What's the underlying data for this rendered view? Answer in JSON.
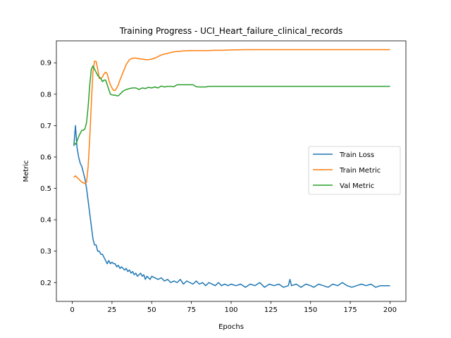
{
  "chart_data": {
    "type": "line",
    "title": "Training Progress - UCI_Heart_failure_clinical_records",
    "xlabel": "Epochs",
    "ylabel": "Metric",
    "xlim": [
      -10,
      210
    ],
    "ylim": [
      0.14,
      0.97
    ],
    "xticks": [
      0,
      25,
      50,
      75,
      100,
      125,
      150,
      175,
      200
    ],
    "yticks": [
      0.2,
      0.3,
      0.4,
      0.5,
      0.6,
      0.7,
      0.8,
      0.9
    ],
    "grid": false,
    "legend_position": "center-right",
    "series": [
      {
        "name": "Train Loss",
        "color": "#1f77b4",
        "x": [
          1,
          2,
          3,
          4,
          5,
          6,
          7,
          8,
          9,
          10,
          11,
          12,
          13,
          14,
          15,
          16,
          17,
          18,
          19,
          20,
          21,
          22,
          23,
          24,
          25,
          26,
          27,
          28,
          29,
          30,
          31,
          32,
          33,
          34,
          35,
          36,
          37,
          38,
          39,
          40,
          41,
          42,
          43,
          44,
          45,
          46,
          47,
          48,
          49,
          50,
          52,
          54,
          56,
          58,
          60,
          62,
          64,
          66,
          68,
          70,
          72,
          74,
          76,
          78,
          80,
          82,
          84,
          86,
          88,
          90,
          92,
          94,
          96,
          98,
          100,
          103,
          106,
          109,
          112,
          115,
          118,
          121,
          124,
          127,
          130,
          133,
          136,
          137,
          138,
          141,
          144,
          147,
          150,
          152,
          155,
          158,
          161,
          164,
          167,
          170,
          173,
          176,
          179,
          182,
          185,
          188,
          191,
          194,
          197,
          200
        ],
        "y": [
          0.635,
          0.7,
          0.63,
          0.6,
          0.58,
          0.57,
          0.55,
          0.53,
          0.5,
          0.46,
          0.42,
          0.38,
          0.34,
          0.32,
          0.32,
          0.3,
          0.3,
          0.29,
          0.29,
          0.28,
          0.27,
          0.26,
          0.27,
          0.26,
          0.265,
          0.26,
          0.26,
          0.25,
          0.255,
          0.245,
          0.25,
          0.245,
          0.24,
          0.245,
          0.235,
          0.24,
          0.23,
          0.235,
          0.225,
          0.23,
          0.22,
          0.225,
          0.23,
          0.22,
          0.225,
          0.21,
          0.22,
          0.215,
          0.21,
          0.22,
          0.215,
          0.21,
          0.215,
          0.205,
          0.21,
          0.2,
          0.205,
          0.2,
          0.21,
          0.195,
          0.205,
          0.2,
          0.195,
          0.205,
          0.195,
          0.2,
          0.19,
          0.2,
          0.195,
          0.19,
          0.2,
          0.19,
          0.195,
          0.19,
          0.195,
          0.19,
          0.195,
          0.185,
          0.195,
          0.19,
          0.2,
          0.185,
          0.195,
          0.19,
          0.195,
          0.185,
          0.19,
          0.21,
          0.19,
          0.195,
          0.185,
          0.195,
          0.19,
          0.185,
          0.195,
          0.19,
          0.185,
          0.195,
          0.19,
          0.2,
          0.19,
          0.185,
          0.19,
          0.195,
          0.19,
          0.195,
          0.185,
          0.19,
          0.19,
          0.19
        ]
      },
      {
        "name": "Train Metric",
        "color": "#ff7f0e",
        "x": [
          1,
          2,
          3,
          4,
          5,
          6,
          7,
          8,
          9,
          10,
          11,
          12,
          13,
          14,
          15,
          16,
          17,
          18,
          19,
          20,
          21,
          22,
          23,
          24,
          25,
          26,
          27,
          28,
          29,
          30,
          32,
          34,
          36,
          38,
          40,
          42,
          44,
          46,
          48,
          50,
          52,
          54,
          56,
          58,
          60,
          62,
          64,
          66,
          68,
          70,
          75,
          80,
          85,
          90,
          95,
          100,
          110,
          120,
          130,
          140,
          150,
          160,
          170,
          180,
          190,
          200
        ],
        "y": [
          0.535,
          0.54,
          0.535,
          0.53,
          0.525,
          0.52,
          0.518,
          0.515,
          0.52,
          0.57,
          0.66,
          0.77,
          0.87,
          0.905,
          0.905,
          0.88,
          0.85,
          0.85,
          0.855,
          0.865,
          0.87,
          0.865,
          0.845,
          0.83,
          0.82,
          0.812,
          0.812,
          0.82,
          0.83,
          0.845,
          0.87,
          0.895,
          0.91,
          0.915,
          0.915,
          0.913,
          0.912,
          0.91,
          0.91,
          0.912,
          0.915,
          0.92,
          0.925,
          0.928,
          0.93,
          0.933,
          0.935,
          0.936,
          0.937,
          0.938,
          0.939,
          0.939,
          0.939,
          0.94,
          0.94,
          0.941,
          0.942,
          0.942,
          0.942,
          0.942,
          0.942,
          0.942,
          0.942,
          0.942,
          0.942,
          0.942
        ]
      },
      {
        "name": "Val Metric",
        "color": "#2ca02c",
        "x": [
          1,
          2,
          3,
          4,
          5,
          6,
          7,
          8,
          9,
          10,
          11,
          12,
          13,
          14,
          15,
          16,
          17,
          18,
          19,
          20,
          21,
          22,
          23,
          24,
          25,
          26,
          27,
          28,
          29,
          30,
          32,
          34,
          36,
          38,
          40,
          42,
          44,
          46,
          48,
          50,
          52,
          54,
          56,
          58,
          60,
          62,
          64,
          66,
          68,
          70,
          72,
          74,
          76,
          78,
          80,
          82,
          84,
          86,
          90,
          100,
          120,
          140,
          160,
          180,
          200
        ],
        "y": [
          0.645,
          0.64,
          0.65,
          0.665,
          0.675,
          0.685,
          0.685,
          0.69,
          0.71,
          0.76,
          0.83,
          0.88,
          0.89,
          0.88,
          0.87,
          0.86,
          0.855,
          0.85,
          0.84,
          0.845,
          0.845,
          0.83,
          0.815,
          0.8,
          0.798,
          0.797,
          0.797,
          0.795,
          0.795,
          0.8,
          0.81,
          0.815,
          0.818,
          0.82,
          0.82,
          0.815,
          0.82,
          0.818,
          0.822,
          0.82,
          0.823,
          0.82,
          0.826,
          0.823,
          0.825,
          0.825,
          0.824,
          0.83,
          0.83,
          0.83,
          0.83,
          0.83,
          0.83,
          0.824,
          0.823,
          0.823,
          0.823,
          0.825,
          0.825,
          0.825,
          0.825,
          0.825,
          0.825,
          0.825,
          0.825
        ]
      }
    ]
  }
}
